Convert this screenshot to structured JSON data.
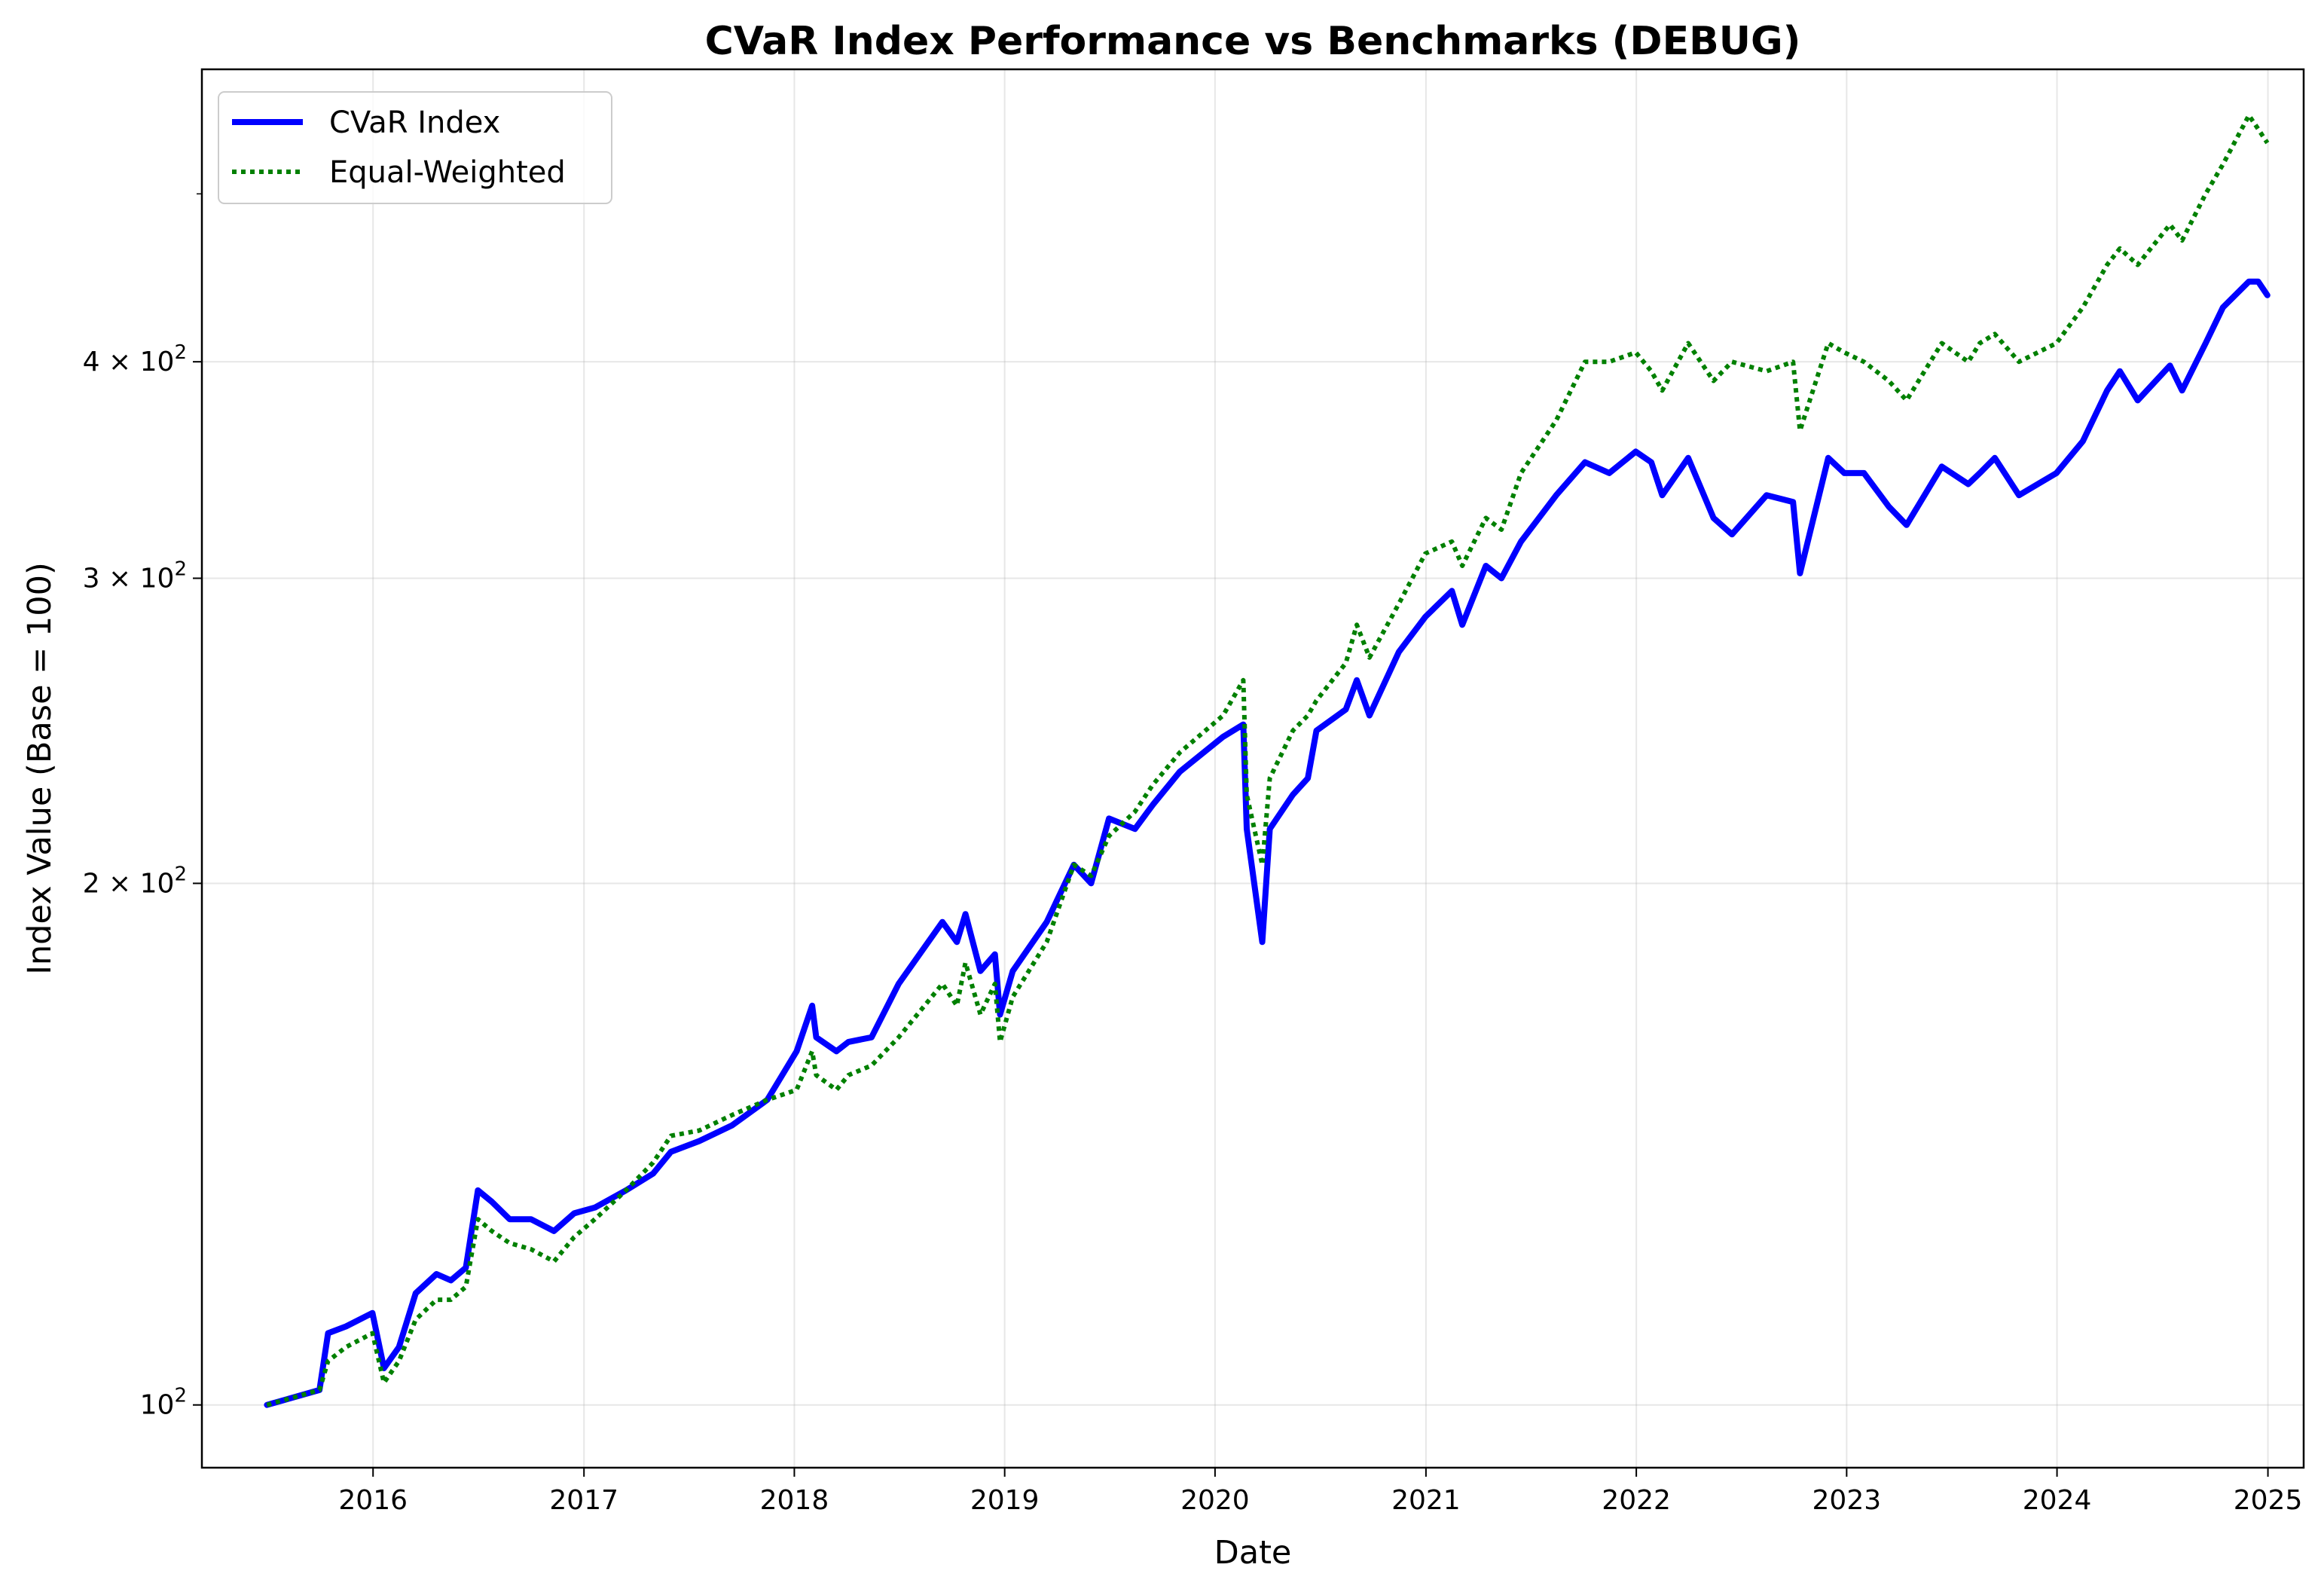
{
  "chart_data": {
    "type": "line",
    "title": "CVaR Index Performance vs Benchmarks (DEBUG)",
    "xlabel": "Date",
    "ylabel": "Index Value (Base = 100)",
    "y_scale": "log",
    "xlim": [
      "2015-03-10",
      "2025-03-04"
    ],
    "ylim": [
      92,
      590
    ],
    "x_ticks": [
      "2016",
      "2017",
      "2018",
      "2019",
      "2020",
      "2021",
      "2022",
      "2023",
      "2024",
      "2025"
    ],
    "y_ticks": [
      {
        "value": 100,
        "base": "10",
        "exp": "2",
        "coef": ""
      },
      {
        "value": 200,
        "base": "10",
        "exp": "2",
        "coef": "2 × "
      },
      {
        "value": 300,
        "base": "10",
        "exp": "2",
        "coef": "3 × "
      },
      {
        "value": 400,
        "base": "10",
        "exp": "2",
        "coef": "4 × "
      }
    ],
    "y_minor_ticks": [
      500
    ],
    "grid": true,
    "legend": "top-left",
    "series": [
      {
        "name": "CVaR Index",
        "color": "#0000ff",
        "style": "solid",
        "x": [
          "2015-07-01",
          "2015-09-30",
          "2015-10-15",
          "2015-11-15",
          "2015-12-31",
          "2016-01-20",
          "2016-02-15",
          "2016-03-15",
          "2016-04-20",
          "2016-05-15",
          "2016-06-10",
          "2016-07-01",
          "2016-07-25",
          "2016-08-25",
          "2016-10-01",
          "2016-11-10",
          "2016-12-15",
          "2017-01-20",
          "2017-03-15",
          "2017-05-01",
          "2017-06-01",
          "2017-07-20",
          "2017-09-15",
          "2017-11-15",
          "2018-01-05",
          "2018-02-01",
          "2018-02-08",
          "2018-03-15",
          "2018-04-05",
          "2018-05-15",
          "2018-07-01",
          "2018-09-15",
          "2018-10-10",
          "2018-10-25",
          "2018-11-20",
          "2018-12-15",
          "2018-12-24",
          "2019-01-15",
          "2019-03-15",
          "2019-05-01",
          "2019-05-31",
          "2019-07-01",
          "2019-08-15",
          "2019-09-15",
          "2019-11-01",
          "2020-01-15",
          "2020-02-19",
          "2020-02-25",
          "2020-03-23",
          "2020-04-05",
          "2020-05-15",
          "2020-06-10",
          "2020-06-25",
          "2020-08-15",
          "2020-09-03",
          "2020-09-25",
          "2020-11-15",
          "2020-12-31",
          "2021-02-15",
          "2021-03-05",
          "2021-04-15",
          "2021-05-12",
          "2021-06-15",
          "2021-08-15",
          "2021-10-04",
          "2021-11-15",
          "2021-12-31",
          "2022-01-27",
          "2022-02-15",
          "2022-04-01",
          "2022-05-15",
          "2022-06-16",
          "2022-08-15",
          "2022-09-30",
          "2022-10-12",
          "2022-11-30",
          "2022-12-28",
          "2023-01-31",
          "2023-03-15",
          "2023-04-15",
          "2023-06-15",
          "2023-07-31",
          "2023-08-20",
          "2023-09-15",
          "2023-10-27",
          "2023-12-31",
          "2024-02-15",
          "2024-03-28",
          "2024-04-19",
          "2024-05-20",
          "2024-07-15",
          "2024-08-05",
          "2024-09-15",
          "2024-10-15",
          "2024-11-29",
          "2024-12-15",
          "2024-12-31"
        ],
        "y": [
          100,
          102,
          110,
          111,
          113,
          105,
          108,
          116,
          119,
          118,
          120,
          133,
          131,
          128,
          128,
          126,
          129,
          130,
          133,
          136,
          140,
          142,
          145,
          150,
          160,
          170,
          163,
          160,
          162,
          163,
          175,
          190,
          185,
          192,
          178,
          182,
          168,
          178,
          190,
          205,
          200,
          218,
          215,
          222,
          232,
          243,
          247,
          215,
          185,
          215,
          225,
          230,
          245,
          252,
          262,
          250,
          272,
          285,
          295,
          282,
          305,
          300,
          315,
          335,
          350,
          345,
          355,
          350,
          335,
          352,
          325,
          318,
          335,
          332,
          302,
          352,
          345,
          345,
          330,
          322,
          348,
          340,
          345,
          352,
          335,
          345,
          360,
          385,
          395,
          380,
          398,
          385,
          410,
          430,
          445,
          445,
          437
        ]
      },
      {
        "name": "Equal-Weighted",
        "color": "#008000",
        "style": "dotted",
        "x": [
          "2015-07-01",
          "2015-09-30",
          "2015-10-15",
          "2015-11-15",
          "2015-12-31",
          "2016-01-20",
          "2016-02-15",
          "2016-03-15",
          "2016-04-20",
          "2016-05-15",
          "2016-06-10",
          "2016-07-01",
          "2016-07-25",
          "2016-08-25",
          "2016-10-01",
          "2016-11-10",
          "2016-12-15",
          "2017-01-20",
          "2017-03-15",
          "2017-05-01",
          "2017-06-01",
          "2017-07-20",
          "2017-09-15",
          "2017-11-15",
          "2018-01-05",
          "2018-02-01",
          "2018-02-08",
          "2018-03-15",
          "2018-04-05",
          "2018-05-15",
          "2018-07-01",
          "2018-09-15",
          "2018-10-10",
          "2018-10-25",
          "2018-11-20",
          "2018-12-15",
          "2018-12-24",
          "2019-01-15",
          "2019-03-15",
          "2019-05-01",
          "2019-05-31",
          "2019-07-01",
          "2019-08-15",
          "2019-09-15",
          "2019-11-01",
          "2020-01-15",
          "2020-02-19",
          "2020-02-25",
          "2020-03-23",
          "2020-04-05",
          "2020-05-15",
          "2020-06-10",
          "2020-06-25",
          "2020-08-15",
          "2020-09-03",
          "2020-09-25",
          "2020-11-15",
          "2020-12-31",
          "2021-02-15",
          "2021-03-05",
          "2021-04-15",
          "2021-05-12",
          "2021-06-15",
          "2021-08-15",
          "2021-10-04",
          "2021-11-15",
          "2021-12-31",
          "2022-01-27",
          "2022-02-15",
          "2022-04-01",
          "2022-05-15",
          "2022-06-16",
          "2022-08-15",
          "2022-09-30",
          "2022-10-12",
          "2022-11-30",
          "2022-12-28",
          "2023-01-31",
          "2023-03-15",
          "2023-04-15",
          "2023-06-15",
          "2023-07-31",
          "2023-08-20",
          "2023-09-15",
          "2023-10-27",
          "2023-12-31",
          "2024-02-15",
          "2024-03-28",
          "2024-04-19",
          "2024-05-20",
          "2024-07-15",
          "2024-08-05",
          "2024-09-15",
          "2024-10-15",
          "2024-11-29",
          "2024-12-15",
          "2024-12-31"
        ],
        "y": [
          100,
          102,
          106,
          108,
          110,
          103,
          106,
          112,
          115,
          115,
          117,
          128,
          126,
          124,
          123,
          121,
          125,
          128,
          133,
          138,
          143,
          144,
          147,
          150,
          152,
          160,
          155,
          152,
          155,
          157,
          163,
          175,
          170,
          180,
          168,
          175,
          162,
          172,
          185,
          205,
          202,
          213,
          220,
          228,
          238,
          250,
          262,
          225,
          205,
          230,
          245,
          250,
          255,
          268,
          282,
          270,
          290,
          310,
          315,
          305,
          325,
          320,
          345,
          370,
          400,
          400,
          405,
          395,
          385,
          410,
          390,
          400,
          395,
          400,
          365,
          410,
          405,
          400,
          390,
          380,
          410,
          400,
          410,
          415,
          400,
          410,
          430,
          455,
          465,
          455,
          480,
          470,
          500,
          520,
          555,
          545,
          535
        ]
      }
    ]
  }
}
